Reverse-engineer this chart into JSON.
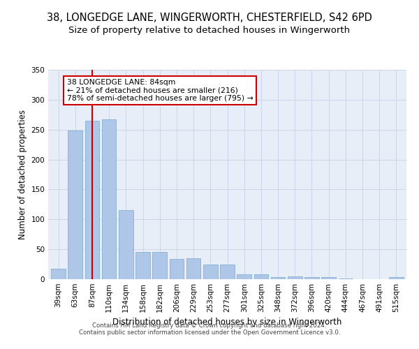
{
  "title_line1": "38, LONGEDGE LANE, WINGERWORTH, CHESTERFIELD, S42 6PD",
  "title_line2": "Size of property relative to detached houses in Wingerworth",
  "xlabel": "Distribution of detached houses by size in Wingerworth",
  "ylabel": "Number of detached properties",
  "categories": [
    "39sqm",
    "63sqm",
    "87sqm",
    "110sqm",
    "134sqm",
    "158sqm",
    "182sqm",
    "206sqm",
    "229sqm",
    "253sqm",
    "277sqm",
    "301sqm",
    "325sqm",
    "348sqm",
    "372sqm",
    "396sqm",
    "420sqm",
    "444sqm",
    "467sqm",
    "491sqm",
    "515sqm"
  ],
  "values": [
    18,
    249,
    265,
    267,
    115,
    45,
    45,
    34,
    35,
    25,
    25,
    8,
    8,
    4,
    5,
    4,
    4,
    1,
    0,
    0,
    4
  ],
  "bar_color": "#aec6e8",
  "bar_edge_color": "#7ba7cc",
  "grid_color": "#ccd6e8",
  "background_color": "#e8eef8",
  "vline_x_index": 2,
  "vline_color": "#cc0000",
  "annotation_text": "38 LONGEDGE LANE: 84sqm\n← 21% of detached houses are smaller (216)\n78% of semi-detached houses are larger (795) →",
  "annotation_box_color": "#ffffff",
  "annotation_box_edge": "#cc0000",
  "ylim": [
    0,
    350
  ],
  "yticks": [
    0,
    50,
    100,
    150,
    200,
    250,
    300,
    350
  ],
  "footer_text": "Contains HM Land Registry data © Crown copyright and database right 2024.\nContains public sector information licensed under the Open Government Licence v3.0.",
  "title_fontsize": 10.5,
  "subtitle_fontsize": 9.5,
  "xlabel_fontsize": 8.5,
  "ylabel_fontsize": 8.5,
  "tick_fontsize": 7.5,
  "annotation_fontsize": 7.8,
  "footer_fontsize": 6.2
}
